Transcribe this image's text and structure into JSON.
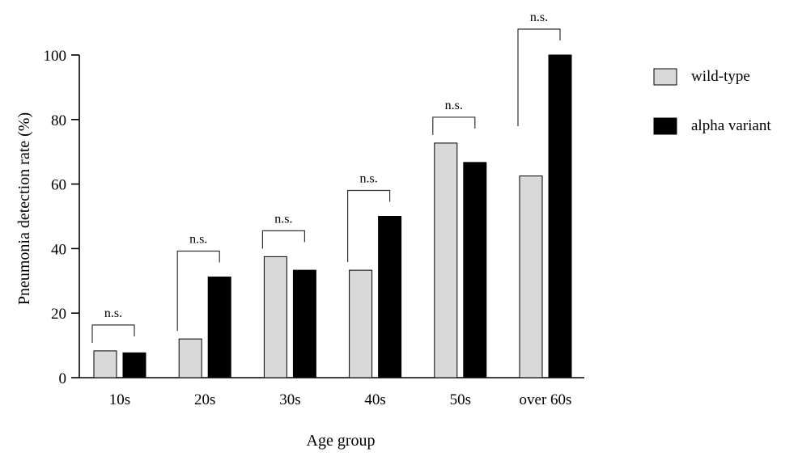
{
  "chart_data": {
    "type": "bar",
    "title": "",
    "xlabel": "Age group",
    "ylabel": "Pneumonia detection rate (%)",
    "ylim": [
      0,
      100
    ],
    "yticks": [
      0,
      20,
      40,
      60,
      80,
      100
    ],
    "categories": [
      "10s",
      "20s",
      "30s",
      "40s",
      "50s",
      "over 60s"
    ],
    "series": [
      {
        "name": "wild-type",
        "color": "#d9d9d9",
        "values": [
          8.3,
          12,
          37.5,
          33.3,
          72.7,
          62.5
        ]
      },
      {
        "name": "alpha variant",
        "color": "#000000",
        "values": [
          7.7,
          31.2,
          33.3,
          50,
          66.7,
          100
        ]
      }
    ],
    "significance": [
      "n.s.",
      "n.s.",
      "n.s.",
      "n.s.",
      "n.s.",
      "n.s."
    ],
    "legend_position": "right",
    "grid": false
  }
}
